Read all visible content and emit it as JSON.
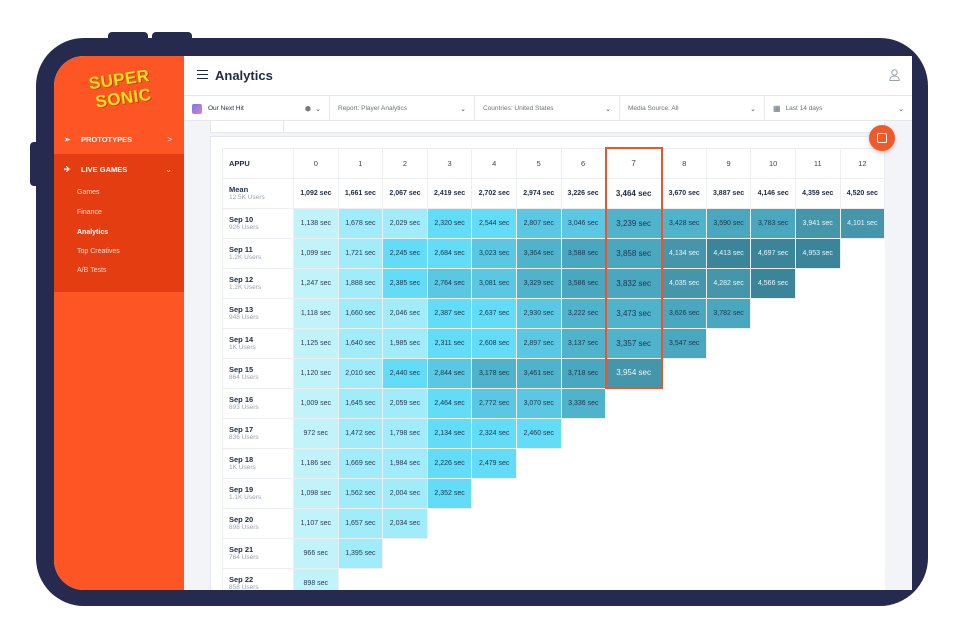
{
  "brand": {
    "logo_line1": "SUPER",
    "logo_line2": "SONIC",
    "accent": "#fd5523"
  },
  "sidebar": {
    "sections": [
      {
        "label": "PROTOTYPES",
        "icon": "paper-plane-icon",
        "chevron": ">"
      },
      {
        "label": "LIVE GAMES",
        "icon": "rocket-icon",
        "chevron": "⌄"
      }
    ],
    "sub_items": [
      "Games",
      "Finance",
      "Analytics",
      "Top Creatives",
      "A/B Tests"
    ],
    "active_sub": "Analytics"
  },
  "header": {
    "title": "Analytics"
  },
  "filters": {
    "game": "Our Next Hit",
    "report": "Report: Player Analytics",
    "countries": "Countries: United States",
    "media_source": "Media Source: All",
    "date_range": "Last 14 days"
  },
  "table": {
    "corner": "APPU",
    "columns": [
      "0",
      "1",
      "2",
      "3",
      "4",
      "5",
      "6",
      "7",
      "8",
      "9",
      "10",
      "11",
      "12"
    ],
    "mean": {
      "label": "Mean",
      "users": "12.5K Users",
      "values": [
        "1,092 sec",
        "1,661 sec",
        "2,067 sec",
        "2,419 sec",
        "2,702 sec",
        "2,974 sec",
        "3,226 sec",
        "3,464 sec",
        "3,670 sec",
        "3,887 sec",
        "4,146 sec",
        "4,359 sec",
        "4,520 sec"
      ]
    },
    "rows": [
      {
        "date": "Sep 10",
        "users": "926 Users",
        "values": [
          "1,138 sec",
          "1,678 sec",
          "2,029 sec",
          "2,320 sec",
          "2,544 sec",
          "2,807 sec",
          "3,046 sec",
          "3,239 sec",
          "3,428 sec",
          "3,590 sec",
          "3,783 sec",
          "3,941 sec",
          "4,101 sec"
        ]
      },
      {
        "date": "Sep 11",
        "users": "1.2K Users",
        "values": [
          "1,099 sec",
          "1,721 sec",
          "2,245 sec",
          "2,684 sec",
          "3,023 sec",
          "3,364 sec",
          "3,588 sec",
          "3,858 sec",
          "4,134 sec",
          "4,413 sec",
          "4,697 sec",
          "4,953 sec"
        ]
      },
      {
        "date": "Sep 12",
        "users": "1.2K Users",
        "values": [
          "1,247 sec",
          "1,888 sec",
          "2,385 sec",
          "2,764 sec",
          "3,081 sec",
          "3,329 sec",
          "3,586 sec",
          "3,832 sec",
          "4,035 sec",
          "4,282 sec",
          "4,566 sec"
        ]
      },
      {
        "date": "Sep 13",
        "users": "948 Users",
        "values": [
          "1,118 sec",
          "1,660 sec",
          "2,046 sec",
          "2,387 sec",
          "2,637 sec",
          "2,930 sec",
          "3,222 sec",
          "3,473 sec",
          "3,626 sec",
          "3,782 sec"
        ]
      },
      {
        "date": "Sep 14",
        "users": "1K Users",
        "values": [
          "1,125 sec",
          "1,640 sec",
          "1,985 sec",
          "2,311 sec",
          "2,608 sec",
          "2,897 sec",
          "3,137 sec",
          "3,357 sec",
          "3,547 sec"
        ]
      },
      {
        "date": "Sep 15",
        "users": "864 Users",
        "values": [
          "1,120 sec",
          "2,010 sec",
          "2,440 sec",
          "2,844 sec",
          "3,178 sec",
          "3,461 sec",
          "3,718 sec",
          "3,954 sec"
        ]
      },
      {
        "date": "Sep 16",
        "users": "893 Users",
        "values": [
          "1,009 sec",
          "1,645 sec",
          "2,059 sec",
          "2,464 sec",
          "2,772 sec",
          "3,070 sec",
          "3,336 sec"
        ]
      },
      {
        "date": "Sep 17",
        "users": "836 Users",
        "values": [
          "972 sec",
          "1,472 sec",
          "1,798 sec",
          "2,134 sec",
          "2,324 sec",
          "2,460 sec"
        ]
      },
      {
        "date": "Sep 18",
        "users": "1K Users",
        "values": [
          "1,186 sec",
          "1,669 sec",
          "1,984 sec",
          "2,226 sec",
          "2,479 sec"
        ]
      },
      {
        "date": "Sep 19",
        "users": "1.1K Users",
        "values": [
          "1,098 sec",
          "1,562 sec",
          "2,004 sec",
          "2,352 sec"
        ]
      },
      {
        "date": "Sep 20",
        "users": "898 Users",
        "values": [
          "1,107 sec",
          "1,657 sec",
          "2,034 sec"
        ]
      },
      {
        "date": "Sep 21",
        "users": "764 Users",
        "values": [
          "966 sec",
          "1,395 sec"
        ]
      },
      {
        "date": "Sep 22",
        "users": "858 Users",
        "values": [
          "898 sec"
        ]
      }
    ],
    "highlight": {
      "column": "7",
      "values": [
        "3,239 sec",
        "3,858 sec",
        "3,832 sec",
        "3,473 sec",
        "3,357 sec",
        "3,954 sec"
      ]
    }
  }
}
